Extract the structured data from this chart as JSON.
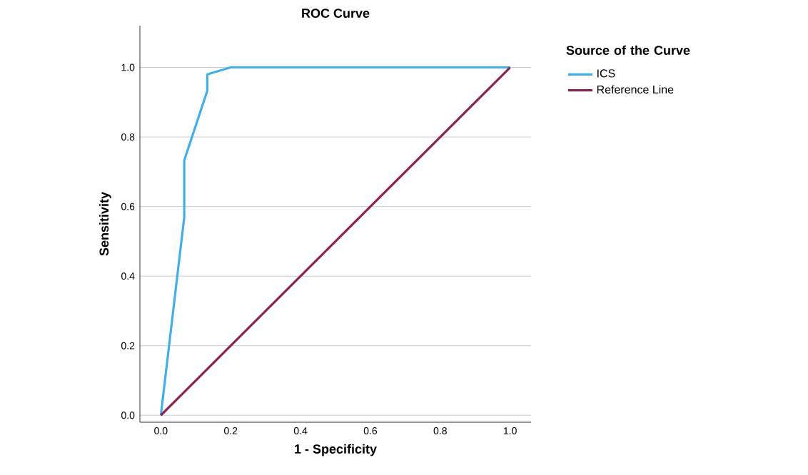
{
  "chart_data": {
    "type": "line",
    "title": "ROC Curve",
    "xlabel": "1 - Specificity",
    "ylabel": "Sensitivity",
    "legend_title": "Source of the Curve",
    "legend": "top right",
    "grid": "y",
    "marker": "none",
    "line_style": "solid",
    "xlim": [
      -0.06,
      1.06
    ],
    "ylim": [
      -0.02,
      1.12
    ],
    "xticks": [
      {
        "value": 0,
        "label": "0.0"
      },
      0.2,
      0.4,
      0.6,
      0.8,
      {
        "value": 1,
        "label": "1.0"
      }
    ],
    "yticks": [
      {
        "value": 0,
        "label": "0.0"
      },
      0.2,
      0.4,
      0.6,
      0.8,
      {
        "value": 1,
        "label": "1.0"
      }
    ],
    "series": [
      {
        "name": "ICS",
        "color": "#41b0e8",
        "x": [
          0,
          0.067,
          0.067,
          0.133,
          0.133,
          0.2,
          1
        ],
        "values": [
          0,
          0.57,
          0.733,
          0.933,
          0.98,
          1,
          1
        ]
      },
      {
        "name": "Reference Line",
        "color": "#8b2252",
        "x": [
          0,
          1
        ],
        "values": [
          0,
          1
        ]
      }
    ]
  }
}
